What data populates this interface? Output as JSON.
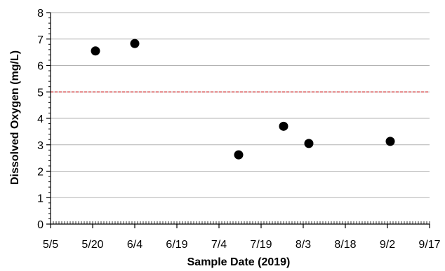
{
  "chart_data": {
    "type": "scatter",
    "title": "",
    "xlabel": "Sample Date (2019)",
    "ylabel": "Dissolved Oxygen (mg/L)",
    "x_ticks": [
      "5/5",
      "5/20",
      "6/4",
      "6/19",
      "7/4",
      "7/19",
      "8/3",
      "8/18",
      "9/2",
      "9/17"
    ],
    "xlim": [
      "2019-05-05",
      "2019-09-17"
    ],
    "y_ticks": [
      "0",
      "1",
      "2",
      "3",
      "4",
      "5",
      "6",
      "7",
      "8"
    ],
    "ylim": [
      0,
      8
    ],
    "grid": true,
    "series": [
      {
        "points": [
          {
            "x": "2019-05-21",
            "y": 6.55
          },
          {
            "x": "2019-06-04",
            "y": 6.83
          },
          {
            "x": "2019-07-11",
            "y": 2.62
          },
          {
            "x": "2019-07-27",
            "y": 3.7
          },
          {
            "x": "2019-08-05",
            "y": 3.05
          },
          {
            "x": "2019-09-03",
            "y": 3.13
          }
        ],
        "color": "#000000"
      }
    ],
    "reference_line": {
      "y": 5,
      "color": "#d62728",
      "style": "dashed"
    }
  }
}
